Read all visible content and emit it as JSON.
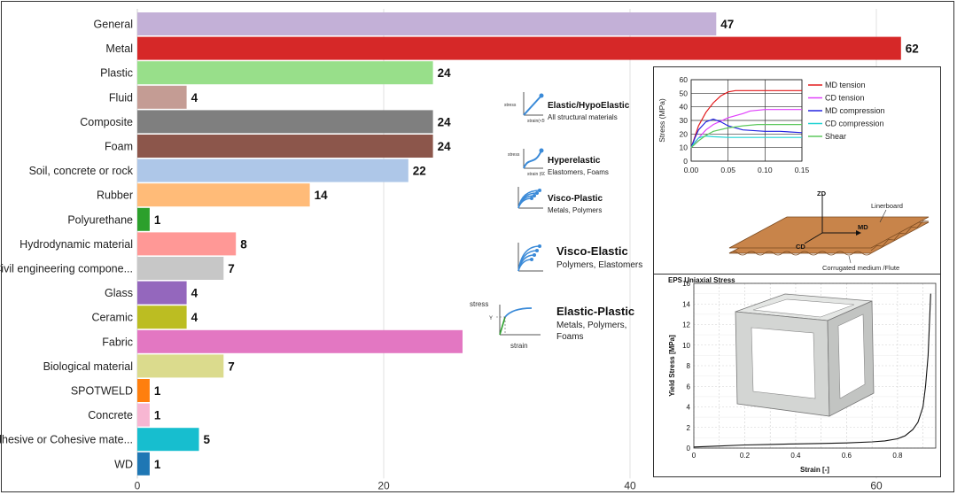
{
  "chart_data": [
    {
      "type": "bar",
      "orientation": "horizontal",
      "categories": [
        "General",
        "Metal",
        "Plastic",
        "Fluid",
        "Composite",
        "Foam",
        "Soil, concrete or rock",
        "Rubber",
        "Polyurethane",
        "Hydrodynamic material",
        "Civil engineering compone...",
        "Glass",
        "Ceramic",
        "Fabric",
        "Biological material",
        "SPOTWELD",
        "Concrete",
        "Adhesive or Cohesive mate...",
        "WD"
      ],
      "values": [
        47,
        62,
        24,
        4,
        24,
        24,
        22,
        14,
        1,
        8,
        7,
        4,
        4,
        null,
        7,
        1,
        1,
        5,
        1
      ],
      "value_labels": [
        "47",
        "62",
        "24",
        "4",
        "24",
        "24",
        "22",
        "14",
        "1",
        "8",
        "7",
        "4",
        "4",
        "",
        "7",
        "1",
        "1",
        "5",
        "1"
      ],
      "colors": [
        "#c3b0d7",
        "#d62828",
        "#98df8a",
        "#c49c94",
        "#7f7f7f",
        "#8c564b",
        "#aec7e8",
        "#ffbb78",
        "#2ca02c",
        "#ff9896",
        "#c7c7c7",
        "#9467bd",
        "#bcbd22",
        "#e377c2",
        "#dbdb8d",
        "#ff7f0e",
        "#f7b6d2",
        "#17becf",
        "#1f77b4"
      ],
      "xticks": [
        "0",
        "20",
        "40",
        "60"
      ],
      "xlim": [
        0,
        66
      ],
      "grid": true
    },
    {
      "type": "line",
      "xlabel": "",
      "ylabel": "Stress (MPa)",
      "xticks": [
        "0.00",
        "0.05",
        "0.10",
        "0.15"
      ],
      "yticks": [
        "0",
        "10",
        "20",
        "30",
        "40",
        "50",
        "60"
      ],
      "xlim": [
        0,
        0.15
      ],
      "ylim": [
        0,
        60
      ],
      "legend_position": "top-right",
      "series": [
        {
          "name": "MD tension",
          "color": "#e31a1c",
          "x": [
            0,
            0.005,
            0.01,
            0.02,
            0.03,
            0.04,
            0.05,
            0.06,
            0.08,
            0.1,
            0.12,
            0.15
          ],
          "y": [
            10,
            18,
            26,
            36,
            43,
            48,
            51,
            52,
            52,
            52,
            52,
            52
          ]
        },
        {
          "name": "CD tension",
          "color": "#e040fb",
          "x": [
            0,
            0.01,
            0.02,
            0.03,
            0.05,
            0.07,
            0.08,
            0.1,
            0.12,
            0.15
          ],
          "y": [
            10,
            17,
            23,
            27,
            32,
            35,
            37,
            38,
            38,
            38
          ]
        },
        {
          "name": "MD compression",
          "color": "#2424e0",
          "x": [
            0,
            0.005,
            0.01,
            0.02,
            0.03,
            0.04,
            0.05,
            0.07,
            0.1,
            0.12,
            0.15
          ],
          "y": [
            10,
            17,
            23,
            29,
            31,
            29,
            26,
            23,
            22,
            22,
            21
          ]
        },
        {
          "name": "CD compression",
          "color": "#22d3d3",
          "x": [
            0,
            0.005,
            0.01,
            0.015,
            0.02,
            0.03,
            0.05,
            0.08,
            0.1,
            0.15
          ],
          "y": [
            10,
            14,
            17,
            18,
            18.5,
            18,
            17.5,
            17.5,
            17.5,
            17.5
          ]
        },
        {
          "name": "Shear",
          "color": "#5dc85d",
          "x": [
            0,
            0.01,
            0.02,
            0.03,
            0.05,
            0.07,
            0.09,
            0.12,
            0.15
          ],
          "y": [
            10,
            15,
            19,
            22,
            24.5,
            26,
            27,
            27,
            27
          ]
        }
      ]
    },
    {
      "type": "line",
      "title": "EPS Uniaxial Stress",
      "xlabel": "Strain [-]",
      "ylabel": "Yield Stress [MPa]",
      "xticks": [
        "0",
        "0.2",
        "0.4",
        "0.6",
        "0.8"
      ],
      "yticks": [
        "0",
        "2",
        "4",
        "6",
        "8",
        "10",
        "12",
        "14",
        "16"
      ],
      "xlim": [
        0,
        0.95
      ],
      "ylim": [
        0,
        16
      ],
      "series": [
        {
          "name": "",
          "color": "#111111",
          "x": [
            0,
            0.1,
            0.2,
            0.3,
            0.4,
            0.5,
            0.6,
            0.7,
            0.75,
            0.8,
            0.83,
            0.86,
            0.88,
            0.9,
            0.91,
            0.92,
            0.93
          ],
          "y": [
            0.1,
            0.2,
            0.3,
            0.35,
            0.4,
            0.45,
            0.5,
            0.6,
            0.7,
            0.9,
            1.2,
            1.8,
            2.5,
            4,
            6,
            9,
            15
          ]
        }
      ]
    }
  ],
  "material_models": [
    {
      "title": "Elastic/HypoElastic",
      "subtitle": "All structural materials",
      "icon": "elastic-curve-icon",
      "icon_labels": [
        "stress",
        "strain(<5%)"
      ]
    },
    {
      "title": "Hyperelastic",
      "subtitle": "Elastomers, Foams",
      "icon": "hyperelastic-curve-icon",
      "icon_labels": [
        "stress",
        "strain (600%)"
      ]
    },
    {
      "title": "Visco-Plastic",
      "subtitle": "Metals, Polymers",
      "icon": "viscoplastic-curves-icon",
      "icon_labels": []
    },
    {
      "title": "Visco-Elastic",
      "subtitle": "Polymers, Elastomers",
      "icon": "viscoelastic-curves-icon",
      "icon_labels": []
    },
    {
      "title": "Elastic-Plastic",
      "subtitle": "Metals, Polymers, Foams",
      "icon": "elastic-plastic-curve-icon",
      "icon_labels": [
        "stress",
        "Y",
        "strain"
      ]
    }
  ],
  "corrugated_diagram": {
    "labels": {
      "zd": "ZD",
      "md": "MD",
      "cd": "CD",
      "liner": "Linerboard",
      "flute": "Corrugated medium /Flute"
    },
    "colors": {
      "board": "#c8844a",
      "edge": "#7a4a20"
    }
  }
}
